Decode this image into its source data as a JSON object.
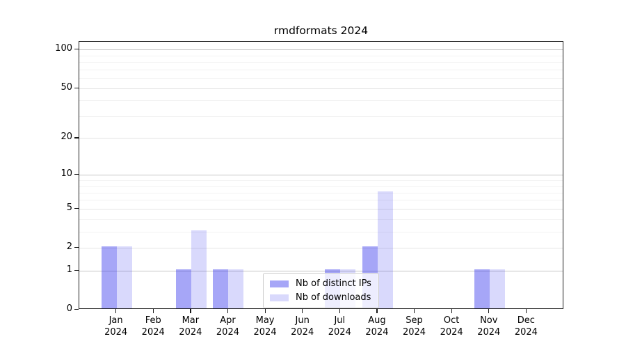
{
  "chart_data": {
    "type": "bar",
    "title": "rmdformats 2024",
    "categories": [
      {
        "month": "Jan",
        "year": "2024"
      },
      {
        "month": "Feb",
        "year": "2024"
      },
      {
        "month": "Mar",
        "year": "2024"
      },
      {
        "month": "Apr",
        "year": "2024"
      },
      {
        "month": "May",
        "year": "2024"
      },
      {
        "month": "Jun",
        "year": "2024"
      },
      {
        "month": "Jul",
        "year": "2024"
      },
      {
        "month": "Aug",
        "year": "2024"
      },
      {
        "month": "Sep",
        "year": "2024"
      },
      {
        "month": "Oct",
        "year": "2024"
      },
      {
        "month": "Nov",
        "year": "2024"
      },
      {
        "month": "Dec",
        "year": "2024"
      }
    ],
    "series": [
      {
        "name": "Nb of distinct IPs",
        "values": [
          2,
          0,
          1,
          1,
          0,
          0,
          1,
          2,
          0,
          0,
          1,
          0
        ],
        "color": "rgba(44,44,236,0.42)"
      },
      {
        "name": "Nb of downloads",
        "values": [
          2,
          0,
          3,
          1,
          0,
          0,
          1,
          7,
          0,
          0,
          1,
          0
        ],
        "color": "rgba(44,44,236,0.18)"
      }
    ],
    "y_axis": {
      "scale": "log1p",
      "ticks": [
        0,
        1,
        2,
        5,
        10,
        20,
        50,
        100
      ],
      "decade_ticks": [
        1,
        10,
        100
      ],
      "minor_gridlines": [
        3,
        4,
        6,
        7,
        8,
        9,
        30,
        40,
        60,
        70,
        80,
        90
      ],
      "max": 115
    },
    "grid": "on",
    "legend_position": "lower-center",
    "colors": {
      "decade_gridline": "#c4c4c4",
      "major_gridline": "#e4e4e4",
      "minor_gridline": "#f2f2f2",
      "spine": "#1a1a1a",
      "text": "#000000"
    }
  }
}
